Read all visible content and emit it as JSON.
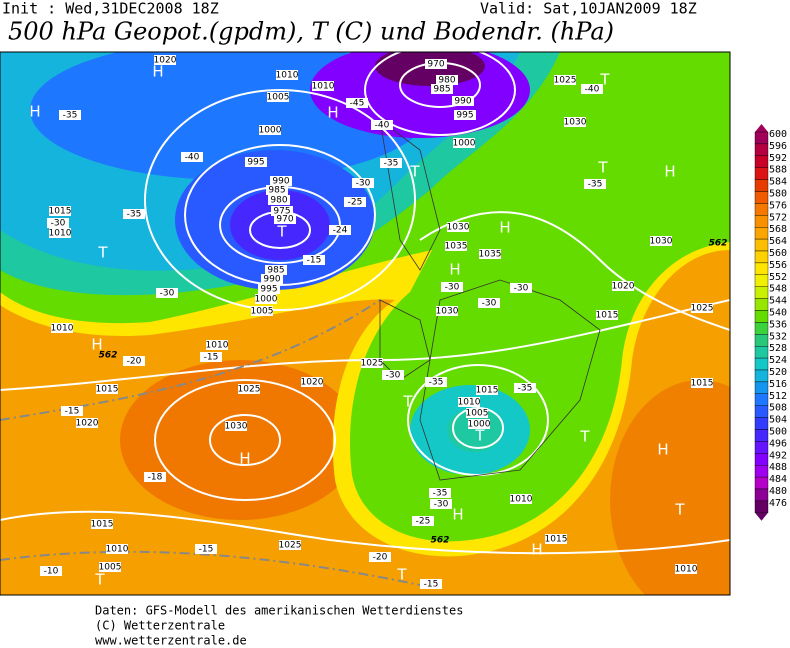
{
  "header": {
    "init": "Init : Wed,31DEC2008 18Z",
    "valid": "Valid: Sat,10JAN2009 18Z",
    "title": "500 hPa Geopot.(gpdm), T (C) und Bodendr. (hPa)"
  },
  "legend": {
    "values": [
      600,
      596,
      592,
      588,
      584,
      580,
      576,
      572,
      568,
      564,
      560,
      556,
      552,
      548,
      544,
      540,
      536,
      532,
      528,
      524,
      520,
      516,
      512,
      508,
      504,
      500,
      496,
      492,
      488,
      484,
      480,
      476
    ],
    "colors": [
      "#a0005a",
      "#b40040",
      "#c80028",
      "#dc1414",
      "#e63c00",
      "#f05a00",
      "#f57800",
      "#f89000",
      "#faa500",
      "#fcbe00",
      "#fdd200",
      "#ffe600",
      "#f0f000",
      "#c8f000",
      "#96e600",
      "#64dc00",
      "#3cd23c",
      "#28c878",
      "#1ec8a0",
      "#14c8c8",
      "#14b4dc",
      "#1496f0",
      "#1e78ff",
      "#285aff",
      "#323cff",
      "#4628ff",
      "#6414ff",
      "#8200ff",
      "#a000f0",
      "#b400c8",
      "#8c0096",
      "#640064"
    ]
  },
  "map": {
    "centers": [
      "H",
      "H",
      "T",
      "H",
      "T",
      "H",
      "H",
      "T",
      "T",
      "H",
      "T",
      "H",
      "T",
      "T",
      "T",
      "H",
      "H",
      "T",
      "H",
      "H",
      "T",
      "T"
    ],
    "pressure": [
      "1020",
      "1010",
      "1010",
      "1005",
      "1000",
      "995",
      "990",
      "985",
      "980",
      "975",
      "970",
      "985",
      "990",
      "995",
      "1000",
      "1005",
      "1015",
      "1010",
      "1010",
      "1010",
      "1015",
      "1020",
      "1025",
      "1030",
      "1020",
      "1015",
      "1010",
      "1005",
      "1025",
      "1030",
      "1035",
      "1035",
      "1030",
      "1025",
      "1015",
      "1010",
      "1005",
      "1000",
      "1010",
      "1015",
      "1010",
      "1015",
      "1025",
      "1020",
      "1015",
      "1030",
      "1030",
      "1025",
      "1000",
      "995",
      "990",
      "985",
      "980",
      "970"
    ],
    "temperature": [
      "-35",
      "-40",
      "-35",
      "-30",
      "-30",
      "-25",
      "-30",
      "-35",
      "-40",
      "-45",
      "-24",
      "-15",
      "-20",
      "-15",
      "-15",
      "-18",
      "-15",
      "-20",
      "-15",
      "-10",
      "-30",
      "-30",
      "-30",
      "-35",
      "-35",
      "-35",
      "-30",
      "-25",
      "-30",
      "-35",
      "-40"
    ],
    "isohypse": [
      "562",
      "562",
      "562"
    ]
  },
  "footer": [
    "Daten: GFS-Modell des amerikanischen Wetterdienstes",
    "(C) Wetterzentrale",
    "www.wetterzentrale.de"
  ]
}
